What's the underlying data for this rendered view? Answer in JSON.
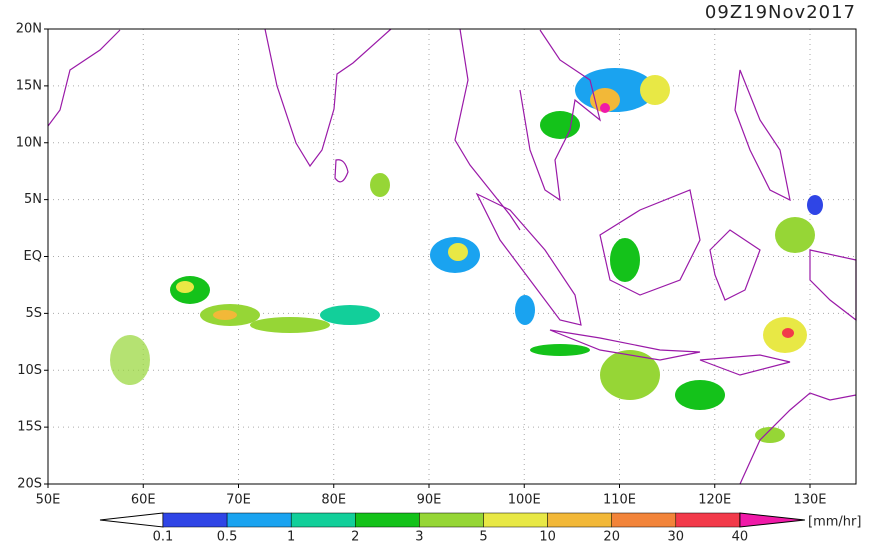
{
  "title": "09Z19Nov2017",
  "lat_labels": [
    "20N",
    "15N",
    "10N",
    "5N",
    "EQ",
    "5S",
    "10S",
    "15S",
    "20S"
  ],
  "lon_labels": [
    "50E",
    "60E",
    "70E",
    "80E",
    "90E",
    "100E",
    "110E",
    "120E",
    "130E"
  ],
  "legend": {
    "labels": [
      "0.1",
      "0.5",
      "1",
      "2",
      "3",
      "5",
      "10",
      "20",
      "30",
      "40"
    ],
    "colors": [
      "#ffffff",
      "#2f45e6",
      "#1aa3f0",
      "#12cf9a",
      "#14c21a",
      "#96d636",
      "#e8e845",
      "#f2b838",
      "#f2843a",
      "#f23a4a",
      "#f01aa8"
    ],
    "unit": "[mm/hr]"
  }
}
